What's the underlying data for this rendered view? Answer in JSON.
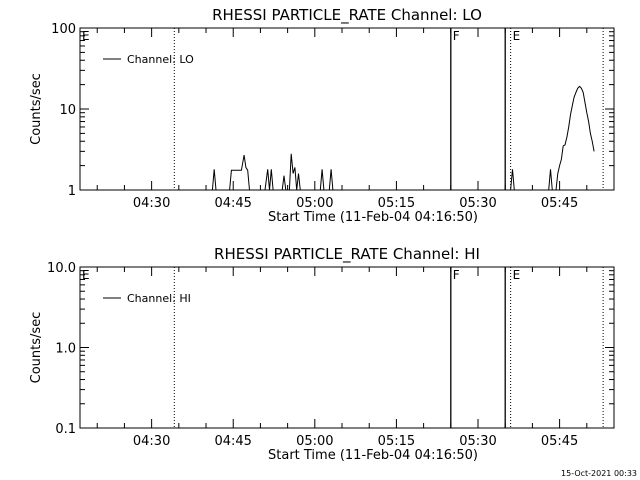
{
  "footer_stamp": "15-Oct-2021 00:33",
  "chart_data": [
    {
      "type": "line",
      "title": "RHESSI PARTICLE_RATE Channel: LO",
      "xlabel": "Start Time (11-Feb-04 04:16:50)",
      "ylabel": "Counts/sec",
      "yscale": "log",
      "ylim": [
        1,
        100
      ],
      "xlim": [
        "04:16:50",
        "05:55:00"
      ],
      "y_ticks": [
        "1",
        "10",
        "100"
      ],
      "x_ticks": [
        "04:30",
        "04:45",
        "05:00",
        "05:15",
        "05:30",
        "05:45"
      ],
      "legend": "Channel: LO",
      "legend_position": "top-left",
      "markers": [
        {
          "label": "E",
          "time": "04:16:50",
          "style": "none"
        },
        {
          "label": "",
          "time": "04:34:10",
          "style": "dotted"
        },
        {
          "label": "F",
          "time": "05:25:00",
          "style": "solid"
        },
        {
          "label": "",
          "time": "05:35:00",
          "style": "solid"
        },
        {
          "label": "E",
          "time": "05:36:00",
          "style": "dotted"
        },
        {
          "label": "",
          "time": "05:53:00",
          "style": "dotted"
        }
      ],
      "series": [
        {
          "name": "Channel: LO",
          "segments": [
            [
              [
                "04:41:10",
                1
              ],
              [
                "04:41:30",
                1.8
              ],
              [
                "04:41:50",
                1
              ]
            ],
            [
              [
                "04:44:20",
                1
              ],
              [
                "04:44:40",
                1.75
              ],
              [
                "04:46:30",
                1.75
              ],
              [
                "04:47:00",
                2.7
              ],
              [
                "04:47:20",
                1.9
              ],
              [
                "04:47:40",
                1.75
              ],
              [
                "04:48:00",
                1
              ]
            ],
            [
              [
                "04:50:50",
                1
              ],
              [
                "04:51:20",
                1.8
              ],
              [
                "04:51:40",
                1
              ],
              [
                "04:52:00",
                1.8
              ],
              [
                "04:52:20",
                1
              ]
            ],
            [
              [
                "04:54:00",
                1
              ],
              [
                "04:54:20",
                1.5
              ],
              [
                "04:54:40",
                1
              ]
            ],
            [
              [
                "04:55:20",
                1
              ],
              [
                "04:55:40",
                2.8
              ],
              [
                "04:56:00",
                1.6
              ],
              [
                "04:56:20",
                1.9
              ],
              [
                "04:56:40",
                1
              ],
              [
                "04:57:00",
                1.6
              ],
              [
                "04:57:20",
                1
              ]
            ],
            [
              [
                "05:01:00",
                1
              ],
              [
                "05:01:20",
                1.8
              ],
              [
                "05:01:40",
                1
              ]
            ],
            [
              [
                "05:02:40",
                1
              ],
              [
                "05:03:00",
                1.8
              ],
              [
                "05:03:20",
                1
              ]
            ],
            [
              [
                "05:36:00",
                1
              ],
              [
                "05:36:20",
                1.8
              ],
              [
                "05:36:40",
                1
              ]
            ],
            [
              [
                "05:43:00",
                1
              ],
              [
                "05:43:20",
                1.8
              ],
              [
                "05:43:40",
                1
              ]
            ],
            [
              [
                "05:44:20",
                1
              ],
              [
                "05:44:40",
                1.6
              ],
              [
                "05:45:00",
                2
              ],
              [
                "05:45:20",
                2.4
              ],
              [
                "05:45:40",
                3.5
              ],
              [
                "05:46:00",
                3.6
              ],
              [
                "05:46:20",
                4.5
              ],
              [
                "05:46:40",
                6
              ],
              [
                "05:47:00",
                8.5
              ],
              [
                "05:47:20",
                11
              ],
              [
                "05:47:40",
                14
              ],
              [
                "05:48:00",
                16
              ],
              [
                "05:48:20",
                18
              ],
              [
                "05:48:40",
                19
              ],
              [
                "05:49:00",
                18
              ],
              [
                "05:49:20",
                16
              ],
              [
                "05:49:40",
                12
              ],
              [
                "05:50:00",
                9
              ],
              [
                "05:50:20",
                7
              ],
              [
                "05:50:40",
                5
              ],
              [
                "05:51:00",
                4
              ],
              [
                "05:51:20",
                3
              ]
            ]
          ]
        }
      ]
    },
    {
      "type": "line",
      "title": "RHESSI PARTICLE_RATE Channel: HI",
      "xlabel": "Start Time (11-Feb-04 04:16:50)",
      "ylabel": "Counts/sec",
      "yscale": "log",
      "ylim": [
        0.1,
        10
      ],
      "xlim": [
        "04:16:50",
        "05:55:00"
      ],
      "y_ticks": [
        "0.1",
        "1.0",
        "10.0"
      ],
      "x_ticks": [
        "04:30",
        "04:45",
        "05:00",
        "05:15",
        "05:30",
        "05:45"
      ],
      "legend": "Channel: HI",
      "legend_position": "top-left",
      "markers": [
        {
          "label": "E",
          "time": "04:16:50",
          "style": "none"
        },
        {
          "label": "",
          "time": "04:34:10",
          "style": "dotted"
        },
        {
          "label": "F",
          "time": "05:25:00",
          "style": "solid"
        },
        {
          "label": "",
          "time": "05:35:00",
          "style": "solid"
        },
        {
          "label": "E",
          "time": "05:36:00",
          "style": "dotted"
        },
        {
          "label": "",
          "time": "05:53:00",
          "style": "dotted"
        }
      ],
      "series": [
        {
          "name": "Channel: HI",
          "segments": []
        }
      ]
    }
  ]
}
